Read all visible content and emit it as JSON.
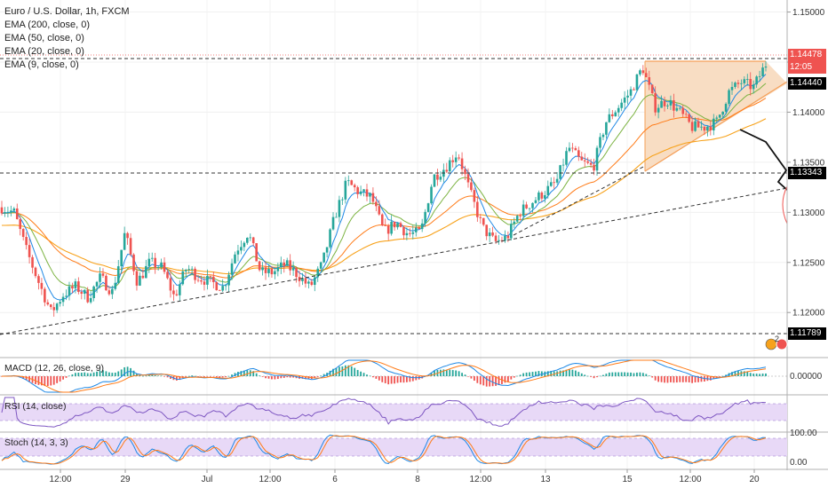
{
  "legend": {
    "symbol": "Euro / U.S. Dollar, 1h, FXCM",
    "ema200": "EMA (200, close, 0)",
    "ema50": "EMA (50, close, 0)",
    "ema20": "EMA (20, close, 0)",
    "ema9": "EMA (9, close, 0)"
  },
  "panes": {
    "macd": "MACD (12, 26, close, 9)",
    "rsi": "RSI (14, close)",
    "stoch": "Stoch (14, 3, 3)"
  },
  "price_labels": {
    "last": "1.14478",
    "countdown": "12:05",
    "ema9_value": "1.14440",
    "level_mid": "1.13343",
    "level_low": "1.11789",
    "macd_zero": "0.00000",
    "stoch_high": "100.00",
    "stoch_low": "0.00"
  },
  "badge": "2",
  "colors": {
    "bull": "#26a69a",
    "bear": "#ef5350",
    "ema200": "#f7a21b",
    "ema50": "#ff7b17",
    "ema20": "#7cb342",
    "ema9": "#1e88e5",
    "triangle_fill": "#f8ddc3",
    "triangle_edge": "#f5a05a",
    "rsi_band": "#e8d9f7",
    "rsi_line": "#7e57c2",
    "stoch_band": "#e8d9f7"
  },
  "chart_data": {
    "type": "candlestick",
    "title": "Euro / U.S. Dollar, 1h, FXCM",
    "y_ticks": [
      "1.15000",
      "1.14500",
      "1.14000",
      "1.13500",
      "1.13000",
      "1.12500",
      "1.12000"
    ],
    "ylim": [
      1.1155,
      1.1512
    ],
    "x_ticks": [
      "12:00",
      "29",
      "Jul",
      "12:00",
      "6",
      "8",
      "12:00",
      "13",
      "15",
      "12:00",
      "20"
    ],
    "horizontal_levels": [
      1.14478,
      1.13343,
      1.11789
    ],
    "close_path": [
      {
        "x": 0,
        "y": 1.1305
      },
      {
        "x": 2,
        "y": 1.13
      },
      {
        "x": 4,
        "y": 1.1262
      },
      {
        "x": 6,
        "y": 1.123
      },
      {
        "x": 8,
        "y": 1.12
      },
      {
        "x": 10,
        "y": 1.1218
      },
      {
        "x": 12,
        "y": 1.1226
      },
      {
        "x": 14,
        "y": 1.1215
      },
      {
        "x": 16,
        "y": 1.1235
      },
      {
        "x": 18,
        "y": 1.122
      },
      {
        "x": 20,
        "y": 1.128
      },
      {
        "x": 22,
        "y": 1.123
      },
      {
        "x": 24,
        "y": 1.125
      },
      {
        "x": 26,
        "y": 1.1245
      },
      {
        "x": 28,
        "y": 1.1215
      },
      {
        "x": 30,
        "y": 1.1245
      },
      {
        "x": 32,
        "y": 1.1235
      },
      {
        "x": 34,
        "y": 1.123
      },
      {
        "x": 36,
        "y": 1.1225
      },
      {
        "x": 38,
        "y": 1.1262
      },
      {
        "x": 40,
        "y": 1.128
      },
      {
        "x": 42,
        "y": 1.124
      },
      {
        "x": 44,
        "y": 1.124
      },
      {
        "x": 46,
        "y": 1.1248
      },
      {
        "x": 48,
        "y": 1.1238
      },
      {
        "x": 50,
        "y": 1.1225
      },
      {
        "x": 52,
        "y": 1.1248
      },
      {
        "x": 54,
        "y": 1.1295
      },
      {
        "x": 56,
        "y": 1.133
      },
      {
        "x": 58,
        "y": 1.132
      },
      {
        "x": 60,
        "y": 1.1315
      },
      {
        "x": 62,
        "y": 1.128
      },
      {
        "x": 64,
        "y": 1.129
      },
      {
        "x": 66,
        "y": 1.1278
      },
      {
        "x": 68,
        "y": 1.128
      },
      {
        "x": 70,
        "y": 1.1335
      },
      {
        "x": 72,
        "y": 1.1345
      },
      {
        "x": 74,
        "y": 1.136
      },
      {
        "x": 76,
        "y": 1.132
      },
      {
        "x": 78,
        "y": 1.1285
      },
      {
        "x": 80,
        "y": 1.127
      },
      {
        "x": 82,
        "y": 1.1275
      },
      {
        "x": 84,
        "y": 1.13
      },
      {
        "x": 86,
        "y": 1.131
      },
      {
        "x": 88,
        "y": 1.132
      },
      {
        "x": 90,
        "y": 1.133
      },
      {
        "x": 92,
        "y": 1.1365
      },
      {
        "x": 94,
        "y": 1.135
      },
      {
        "x": 96,
        "y": 1.1345
      },
      {
        "x": 98,
        "y": 1.139
      },
      {
        "x": 100,
        "y": 1.1405
      },
      {
        "x": 102,
        "y": 1.142
      },
      {
        "x": 104,
        "y": 1.1445
      },
      {
        "x": 106,
        "y": 1.1405
      },
      {
        "x": 108,
        "y": 1.1412
      },
      {
        "x": 110,
        "y": 1.14
      },
      {
        "x": 112,
        "y": 1.1385
      },
      {
        "x": 114,
        "y": 1.1385
      },
      {
        "x": 116,
        "y": 1.139
      },
      {
        "x": 118,
        "y": 1.142
      },
      {
        "x": 120,
        "y": 1.143
      },
      {
        "x": 122,
        "y": 1.1425
      },
      {
        "x": 124,
        "y": 1.1448
      }
    ]
  }
}
